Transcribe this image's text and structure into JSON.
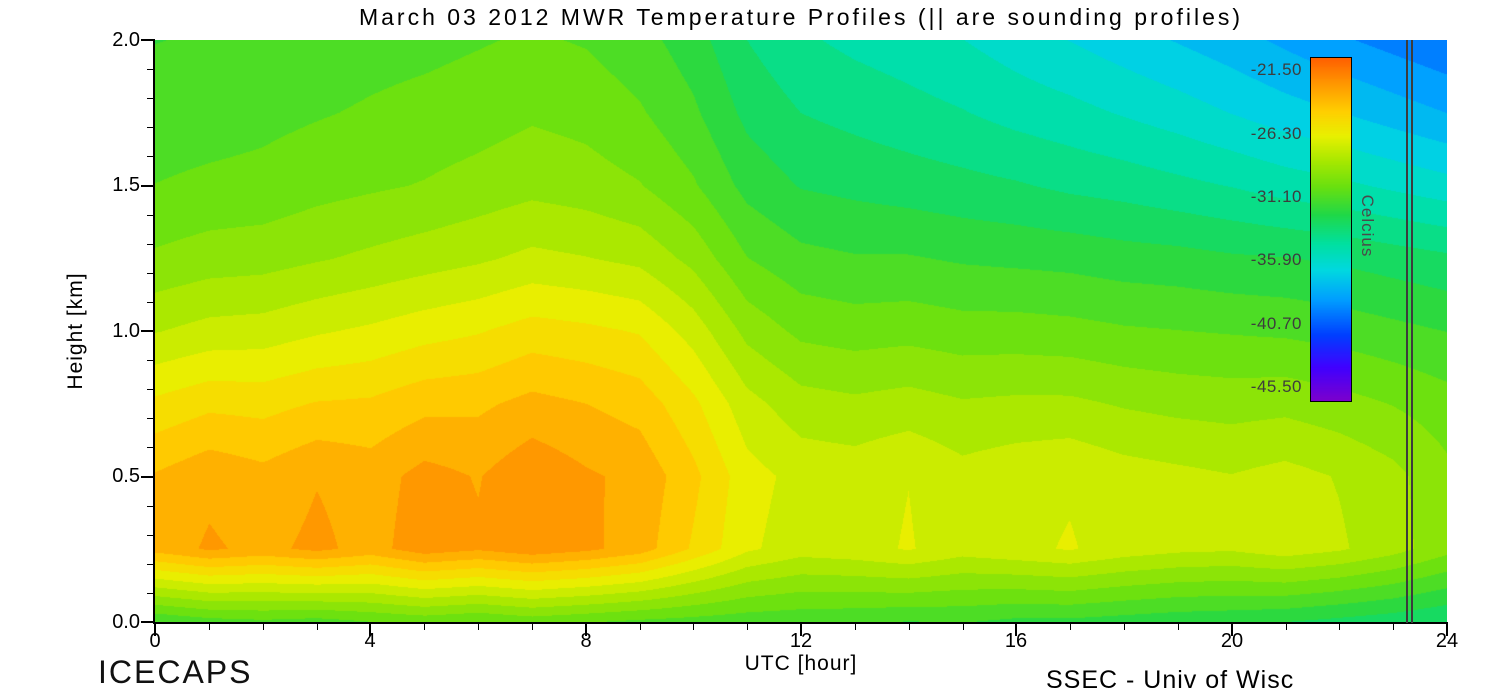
{
  "title": "March 03 2012 MWR Temperature Profiles (|| are sounding profiles)",
  "axes": {
    "x_label": "UTC [hour]",
    "y_label": "Height [km]",
    "x_ticks": [
      "0",
      "4",
      "8",
      "12",
      "16",
      "20",
      "24"
    ],
    "y_ticks": [
      "2.0",
      "1.5",
      "1.0",
      "0.5",
      "0.0"
    ]
  },
  "colorbar": {
    "labels": [
      "-21.50",
      "-26.30",
      "-31.10",
      "-35.90",
      "-40.70",
      "-45.50"
    ],
    "unit_label": "Celcius",
    "domain": [
      -46.5,
      -20.5
    ]
  },
  "footer": {
    "left": "ICECAPS",
    "right": "SSEC - Univ of Wisc"
  },
  "chart_data": {
    "type": "heatmap",
    "title": "March 03 2012 MWR Temperature Profiles",
    "xlabel": "UTC [hour]",
    "ylabel": "Height [km]",
    "xlim": [
      0,
      24
    ],
    "ylim": [
      0,
      2
    ],
    "x_hours": [
      0,
      1,
      2,
      3,
      4,
      5,
      6,
      7,
      8,
      9,
      10,
      11,
      12,
      13,
      14,
      15,
      16,
      17,
      18,
      19,
      20,
      21,
      22,
      23,
      24
    ],
    "y_height_km": [
      0.0,
      0.25,
      0.5,
      0.75,
      1.0,
      1.25,
      1.5,
      1.75,
      2.0
    ],
    "values_celsius": [
      [
        -31.5,
        -31.0,
        -30.8,
        -31.0,
        -30.6,
        -30.3,
        -30.6,
        -30.2,
        -30.5,
        -30.8,
        -31.0,
        -31.2,
        -31.3,
        -31.4,
        -31.6,
        -31.5,
        -31.8,
        -31.8,
        -32.0,
        -32.2,
        -32.3,
        -32.5,
        -32.8,
        -33.1,
        -33.5
      ],
      [
        -23.5,
        -22.8,
        -23.2,
        -22.7,
        -23.3,
        -22.4,
        -22.8,
        -22.3,
        -22.7,
        -23.4,
        -25.0,
        -26.6,
        -27.3,
        -27.1,
        -26.7,
        -27.3,
        -27.0,
        -26.7,
        -27.2,
        -27.5,
        -27.6,
        -27.2,
        -27.6,
        -28.3,
        -29.3
      ],
      [
        -23.8,
        -23.2,
        -23.6,
        -23.0,
        -23.4,
        -22.6,
        -23.0,
        -22.2,
        -22.8,
        -23.2,
        -24.6,
        -26.4,
        -27.1,
        -27.2,
        -26.8,
        -27.4,
        -27.1,
        -26.9,
        -27.3,
        -27.5,
        -27.7,
        -27.4,
        -27.8,
        -28.4,
        -29.4
      ],
      [
        -25.6,
        -25.1,
        -25.2,
        -24.8,
        -24.7,
        -24.2,
        -24.1,
        -23.6,
        -23.9,
        -24.3,
        -25.6,
        -27.4,
        -28.3,
        -28.5,
        -28.3,
        -28.6,
        -28.5,
        -28.5,
        -28.8,
        -29.0,
        -29.1,
        -29.0,
        -29.3,
        -29.7,
        -30.2
      ],
      [
        -27.8,
        -27.4,
        -27.3,
        -26.9,
        -26.6,
        -26.2,
        -25.9,
        -25.4,
        -25.6,
        -25.9,
        -27.2,
        -29.0,
        -29.9,
        -30.1,
        -30.0,
        -30.2,
        -30.2,
        -30.3,
        -30.5,
        -30.6,
        -30.7,
        -30.8,
        -31.0,
        -31.3,
        -31.6
      ],
      [
        -29.5,
        -29.2,
        -29.1,
        -28.8,
        -28.5,
        -28.2,
        -27.9,
        -27.5,
        -27.7,
        -28.0,
        -29.0,
        -30.6,
        -31.3,
        -31.5,
        -31.5,
        -31.7,
        -31.8,
        -31.9,
        -32.1,
        -32.2,
        -32.4,
        -32.5,
        -32.7,
        -33.0,
        -33.3
      ],
      [
        -30.6,
        -30.4,
        -30.3,
        -30.0,
        -29.8,
        -29.6,
        -29.3,
        -29.0,
        -29.2,
        -29.6,
        -30.5,
        -31.9,
        -32.6,
        -32.8,
        -33.0,
        -33.2,
        -33.4,
        -33.7,
        -33.9,
        -34.2,
        -34.5,
        -34.9,
        -35.2,
        -35.6,
        -36.0
      ],
      [
        -31.2,
        -31.1,
        -30.9,
        -30.7,
        -30.5,
        -30.3,
        -30.1,
        -29.8,
        -30.0,
        -30.5,
        -31.4,
        -32.8,
        -33.5,
        -33.8,
        -34.1,
        -34.4,
        -34.8,
        -35.1,
        -35.5,
        -35.9,
        -36.4,
        -36.9,
        -37.3,
        -37.8,
        -38.3
      ],
      [
        -31.6,
        -31.5,
        -31.3,
        -31.2,
        -31.0,
        -30.9,
        -30.7,
        -30.5,
        -30.7,
        -31.2,
        -32.1,
        -33.5,
        -34.3,
        -34.7,
        -35.0,
        -35.4,
        -35.9,
        -36.4,
        -36.9,
        -37.4,
        -37.9,
        -38.5,
        -39.1,
        -39.6,
        -40.1
      ]
    ],
    "sounding_profile_hours": [
      23.3
    ],
    "contour_interval_c": 0.96,
    "colormap_stops": [
      {
        "t": -46.5,
        "rgb": [
          123,
          0,
          205
        ]
      },
      {
        "t": -44.0,
        "rgb": [
          64,
          0,
          255
        ]
      },
      {
        "t": -41.5,
        "rgb": [
          0,
          64,
          255
        ]
      },
      {
        "t": -38.8,
        "rgb": [
          0,
          160,
          255
        ]
      },
      {
        "t": -36.6,
        "rgb": [
          0,
          216,
          224
        ]
      },
      {
        "t": -34.6,
        "rgb": [
          0,
          224,
          160
        ]
      },
      {
        "t": -32.4,
        "rgb": [
          32,
          216,
          72
        ]
      },
      {
        "t": -30.3,
        "rgb": [
          104,
          224,
          16
        ]
      },
      {
        "t": -28.3,
        "rgb": [
          168,
          232,
          0
        ]
      },
      {
        "t": -26.4,
        "rgb": [
          232,
          240,
          0
        ]
      },
      {
        "t": -24.6,
        "rgb": [
          255,
          208,
          0
        ]
      },
      {
        "t": -22.6,
        "rgb": [
          255,
          156,
          0
        ]
      },
      {
        "t": -20.5,
        "rgb": [
          255,
          96,
          0
        ]
      }
    ],
    "legend_position": "inside-top-right",
    "grid": false
  }
}
